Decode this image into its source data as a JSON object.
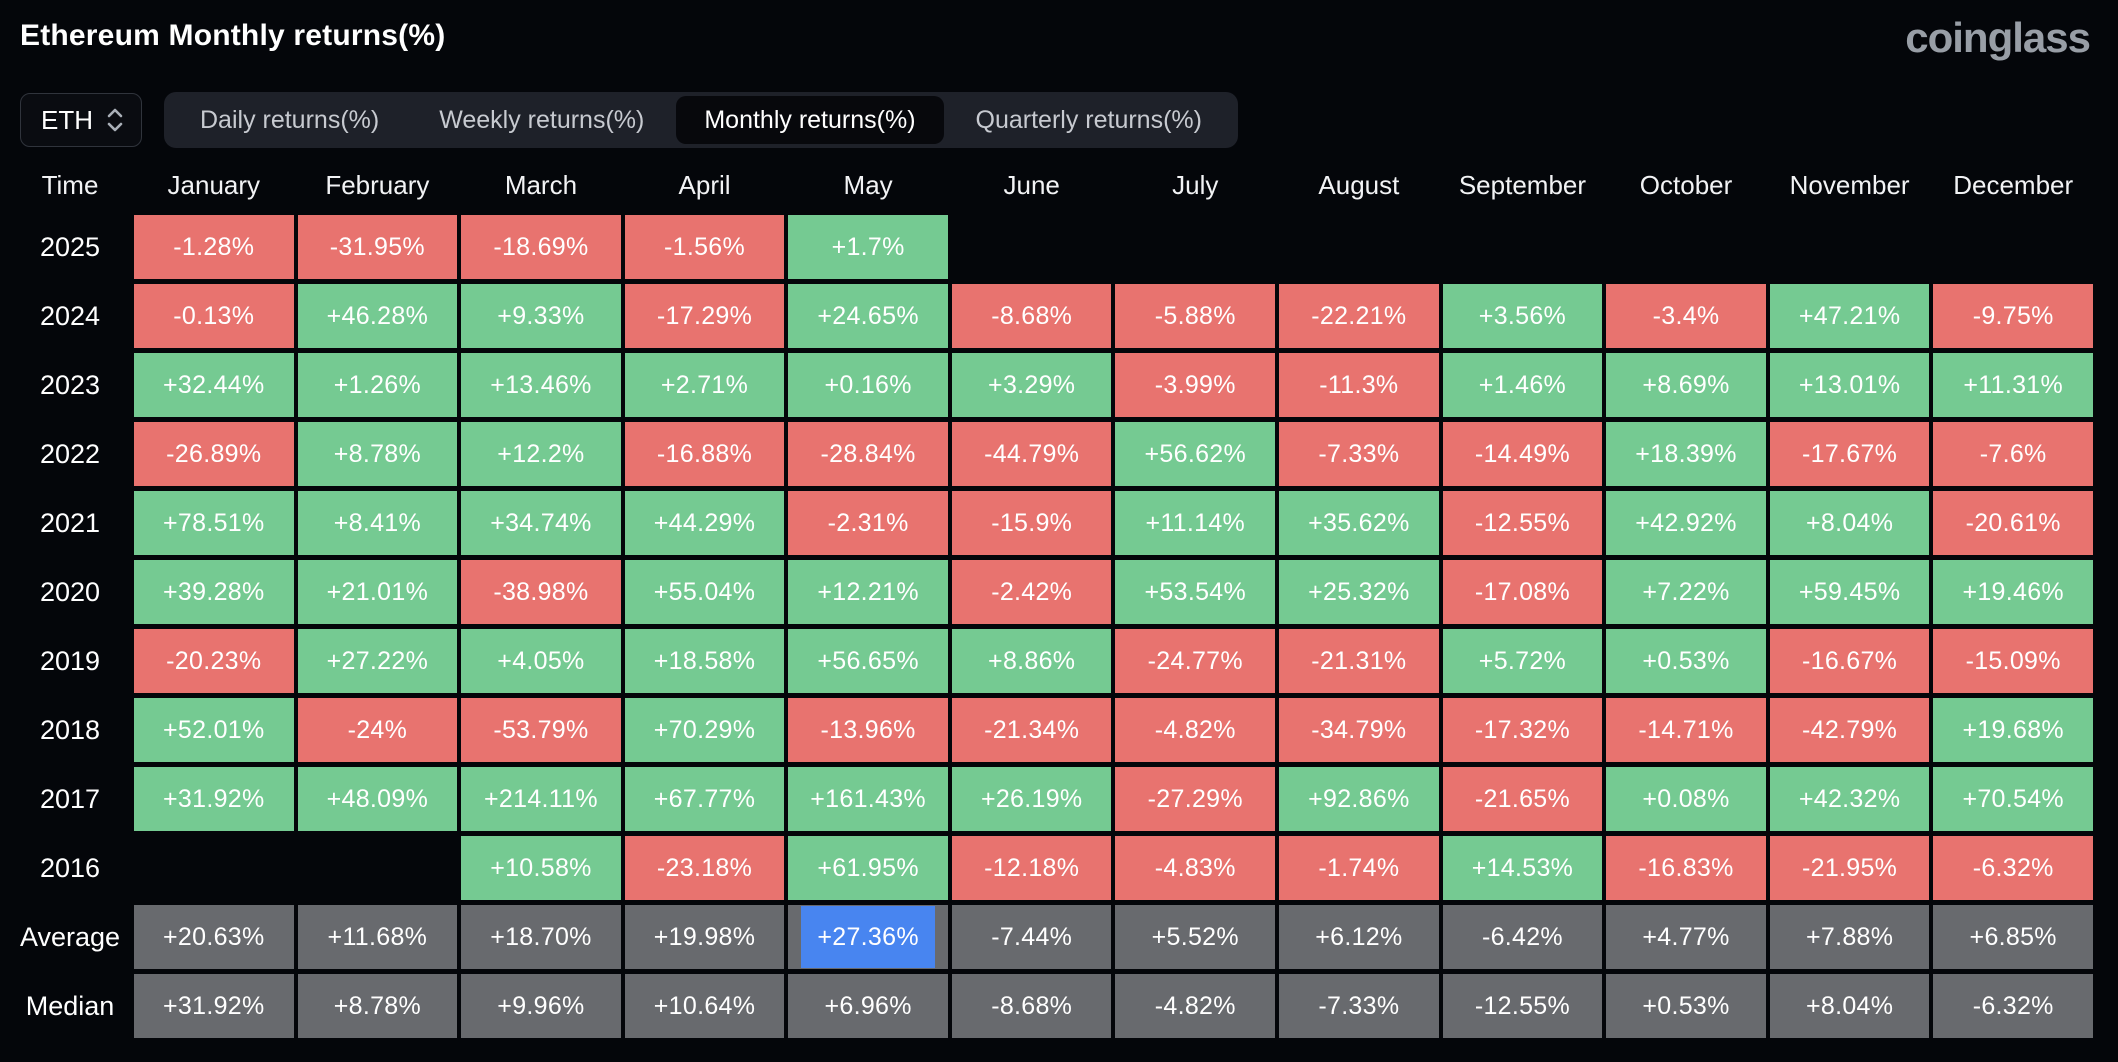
{
  "page": {
    "title": "Ethereum Monthly returns(%)",
    "brand": "coinglass"
  },
  "controls": {
    "coin_selector": {
      "value": "ETH"
    },
    "tabs": [
      "Daily returns(%)",
      "Weekly returns(%)",
      "Monthly returns(%)",
      "Quarterly returns(%)"
    ],
    "active_tab_index": 2
  },
  "colors": {
    "positive": "#75ca92",
    "negative": "#e8736f",
    "neutral": "#686a6e",
    "highlight": "#4885f0",
    "background": "#04060a"
  },
  "table": {
    "columns": [
      "Time",
      "January",
      "February",
      "March",
      "April",
      "May",
      "June",
      "July",
      "August",
      "September",
      "October",
      "November",
      "December"
    ],
    "rows": [
      {
        "label": "2025",
        "type": "year",
        "cells": [
          "-1.28%",
          "-31.95%",
          "-18.69%",
          "-1.56%",
          "+1.7%",
          "",
          "",
          "",
          "",
          "",
          "",
          ""
        ]
      },
      {
        "label": "2024",
        "type": "year",
        "cells": [
          "-0.13%",
          "+46.28%",
          "+9.33%",
          "-17.29%",
          "+24.65%",
          "-8.68%",
          "-5.88%",
          "-22.21%",
          "+3.56%",
          "-3.4%",
          "+47.21%",
          "-9.75%"
        ]
      },
      {
        "label": "2023",
        "type": "year",
        "cells": [
          "+32.44%",
          "+1.26%",
          "+13.46%",
          "+2.71%",
          "+0.16%",
          "+3.29%",
          "-3.99%",
          "-11.3%",
          "+1.46%",
          "+8.69%",
          "+13.01%",
          "+11.31%"
        ]
      },
      {
        "label": "2022",
        "type": "year",
        "cells": [
          "-26.89%",
          "+8.78%",
          "+12.2%",
          "-16.88%",
          "-28.84%",
          "-44.79%",
          "+56.62%",
          "-7.33%",
          "-14.49%",
          "+18.39%",
          "-17.67%",
          "-7.6%"
        ]
      },
      {
        "label": "2021",
        "type": "year",
        "cells": [
          "+78.51%",
          "+8.41%",
          "+34.74%",
          "+44.29%",
          "-2.31%",
          "-15.9%",
          "+11.14%",
          "+35.62%",
          "-12.55%",
          "+42.92%",
          "+8.04%",
          "-20.61%"
        ]
      },
      {
        "label": "2020",
        "type": "year",
        "cells": [
          "+39.28%",
          "+21.01%",
          "-38.98%",
          "+55.04%",
          "+12.21%",
          "-2.42%",
          "+53.54%",
          "+25.32%",
          "-17.08%",
          "+7.22%",
          "+59.45%",
          "+19.46%"
        ]
      },
      {
        "label": "2019",
        "type": "year",
        "cells": [
          "-20.23%",
          "+27.22%",
          "+4.05%",
          "+18.58%",
          "+56.65%",
          "+8.86%",
          "-24.77%",
          "-21.31%",
          "+5.72%",
          "+0.53%",
          "-16.67%",
          "-15.09%"
        ]
      },
      {
        "label": "2018",
        "type": "year",
        "cells": [
          "+52.01%",
          "-24%",
          "-53.79%",
          "+70.29%",
          "-13.96%",
          "-21.34%",
          "-4.82%",
          "-34.79%",
          "-17.32%",
          "-14.71%",
          "-42.79%",
          "+19.68%"
        ]
      },
      {
        "label": "2017",
        "type": "year",
        "cells": [
          "+31.92%",
          "+48.09%",
          "+214.11%",
          "+67.77%",
          "+161.43%",
          "+26.19%",
          "-27.29%",
          "+92.86%",
          "-21.65%",
          "+0.08%",
          "+42.32%",
          "+70.54%"
        ]
      },
      {
        "label": "2016",
        "type": "year",
        "cells": [
          "",
          "",
          "+10.58%",
          "-23.18%",
          "+61.95%",
          "-12.18%",
          "-4.83%",
          "-1.74%",
          "+14.53%",
          "-16.83%",
          "-21.95%",
          "-6.32%"
        ]
      },
      {
        "label": "Average",
        "type": "stat",
        "cells": [
          "+20.63%",
          "+11.68%",
          "+18.70%",
          "+19.98%",
          "+27.36%",
          "-7.44%",
          "+5.52%",
          "+6.12%",
          "-6.42%",
          "+4.77%",
          "+7.88%",
          "+6.85%"
        ]
      },
      {
        "label": "Median",
        "type": "stat",
        "cells": [
          "+31.92%",
          "+8.78%",
          "+9.96%",
          "+10.64%",
          "+6.96%",
          "-8.68%",
          "-4.82%",
          "-7.33%",
          "-12.55%",
          "+0.53%",
          "+8.04%",
          "-6.32%"
        ]
      }
    ],
    "highlight": {
      "row": "Average",
      "column": "May",
      "value": "+27.36%"
    }
  },
  "chart_data": {
    "type": "heatmap",
    "title": "Ethereum Monthly returns(%)",
    "x_categories": [
      "January",
      "February",
      "March",
      "April",
      "May",
      "June",
      "July",
      "August",
      "September",
      "October",
      "November",
      "December"
    ],
    "y_categories": [
      "2025",
      "2024",
      "2023",
      "2022",
      "2021",
      "2020",
      "2019",
      "2018",
      "2017",
      "2016",
      "Average",
      "Median"
    ],
    "values_pct": [
      [
        -1.28,
        -31.95,
        -18.69,
        -1.56,
        1.7,
        null,
        null,
        null,
        null,
        null,
        null,
        null
      ],
      [
        -0.13,
        46.28,
        9.33,
        -17.29,
        24.65,
        -8.68,
        -5.88,
        -22.21,
        3.56,
        -3.4,
        47.21,
        -9.75
      ],
      [
        32.44,
        1.26,
        13.46,
        2.71,
        0.16,
        3.29,
        -3.99,
        -11.3,
        1.46,
        8.69,
        13.01,
        11.31
      ],
      [
        -26.89,
        8.78,
        12.2,
        -16.88,
        -28.84,
        -44.79,
        56.62,
        -7.33,
        -14.49,
        18.39,
        -17.67,
        -7.6
      ],
      [
        78.51,
        8.41,
        34.74,
        44.29,
        -2.31,
        -15.9,
        11.14,
        35.62,
        -12.55,
        42.92,
        8.04,
        -20.61
      ],
      [
        39.28,
        21.01,
        -38.98,
        55.04,
        12.21,
        -2.42,
        53.54,
        25.32,
        -17.08,
        7.22,
        59.45,
        19.46
      ],
      [
        -20.23,
        27.22,
        4.05,
        18.58,
        56.65,
        8.86,
        -24.77,
        -21.31,
        5.72,
        0.53,
        -16.67,
        -15.09
      ],
      [
        52.01,
        -24,
        -53.79,
        70.29,
        -13.96,
        -21.34,
        -4.82,
        -34.79,
        -17.32,
        -14.71,
        -42.79,
        19.68
      ],
      [
        31.92,
        48.09,
        214.11,
        67.77,
        161.43,
        26.19,
        -27.29,
        92.86,
        -21.65,
        0.08,
        42.32,
        70.54
      ],
      [
        null,
        null,
        10.58,
        -23.18,
        61.95,
        -12.18,
        -4.83,
        -1.74,
        14.53,
        -16.83,
        -21.95,
        -6.32
      ],
      [
        20.63,
        11.68,
        18.7,
        19.98,
        27.36,
        -7.44,
        5.52,
        6.12,
        -6.42,
        4.77,
        7.88,
        6.85
      ],
      [
        31.92,
        8.78,
        9.96,
        10.64,
        6.96,
        -8.68,
        -4.82,
        -7.33,
        -12.55,
        0.53,
        8.04,
        -6.32
      ]
    ]
  }
}
